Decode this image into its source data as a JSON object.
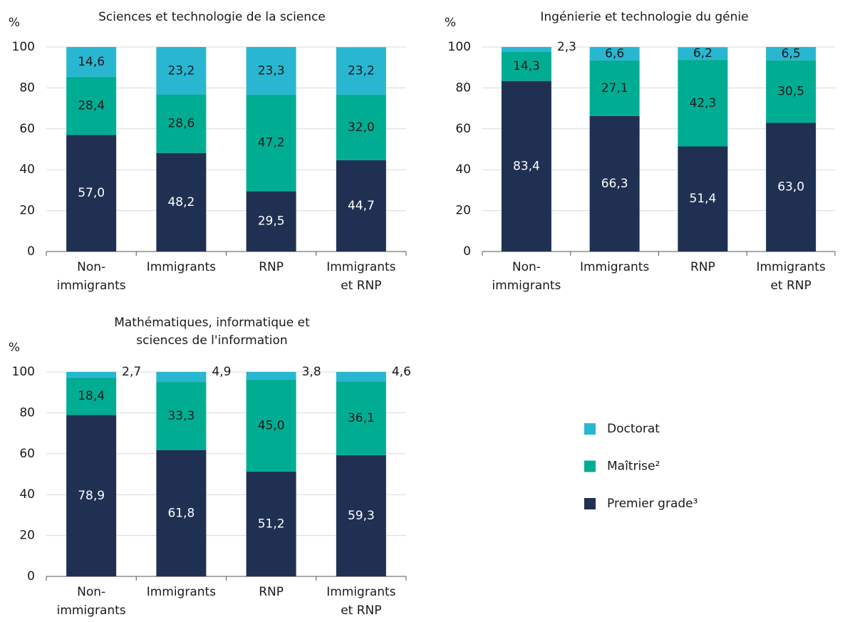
{
  "chart_data": [
    {
      "type": "bar",
      "stacked": true,
      "title": "Sciences et technologie de la science",
      "ylabel": "%",
      "categories": [
        "Non-immigrants",
        "Immigrants",
        "RNP",
        "Immigrants et RNP"
      ],
      "ylim": [
        0,
        100
      ],
      "yticks": [
        0,
        20,
        40,
        60,
        80,
        100
      ],
      "grid": true,
      "series": [
        {
          "name": "Premier grade³",
          "color": "#1f3052",
          "values": [
            57.0,
            48.2,
            29.5,
            44.7
          ],
          "value_labels": [
            "57,0",
            "48,2",
            "29,5",
            "44,7"
          ]
        },
        {
          "name": "Maîtrise²",
          "color": "#00ad93",
          "values": [
            28.4,
            28.6,
            47.2,
            32.0
          ],
          "value_labels": [
            "28,4",
            "28,6",
            "47,2",
            "32,0"
          ]
        },
        {
          "name": "Doctorat",
          "color": "#29b6d1",
          "values": [
            14.6,
            23.2,
            23.3,
            23.2
          ],
          "value_labels": [
            "14,6",
            "23,2",
            "23,3",
            "23,2"
          ]
        }
      ]
    },
    {
      "type": "bar",
      "stacked": true,
      "title": "Ingénierie et technologie du génie",
      "ylabel": "%",
      "categories": [
        "Non-immigrants",
        "Immigrants",
        "RNP",
        "Immigrants et RNP"
      ],
      "ylim": [
        0,
        100
      ],
      "yticks": [
        0,
        20,
        40,
        60,
        80,
        100
      ],
      "grid": true,
      "series": [
        {
          "name": "Premier grade³",
          "color": "#1f3052",
          "values": [
            83.4,
            66.3,
            51.4,
            63.0
          ],
          "value_labels": [
            "83,4",
            "66,3",
            "51,4",
            "63,0"
          ]
        },
        {
          "name": "Maîtrise²",
          "color": "#00ad93",
          "values": [
            14.3,
            27.1,
            42.3,
            30.5
          ],
          "value_labels": [
            "14,3",
            "27,1",
            "42,3",
            "30,5"
          ]
        },
        {
          "name": "Doctorat",
          "color": "#29b6d1",
          "values": [
            2.3,
            6.6,
            6.2,
            6.5
          ],
          "value_labels": [
            "2,3",
            "6,6",
            "6,2",
            "6,5"
          ]
        }
      ]
    },
    {
      "type": "bar",
      "stacked": true,
      "title": "Mathématiques, informatique et sciences de l'information",
      "ylabel": "%",
      "categories": [
        "Non-immigrants",
        "Immigrants",
        "RNP",
        "Immigrants et RNP"
      ],
      "ylim": [
        0,
        100
      ],
      "yticks": [
        0,
        20,
        40,
        60,
        80,
        100
      ],
      "grid": true,
      "series": [
        {
          "name": "Premier grade³",
          "color": "#1f3052",
          "values": [
            78.9,
            61.8,
            51.2,
            59.3
          ],
          "value_labels": [
            "78,9",
            "61,8",
            "51,2",
            "59,3"
          ]
        },
        {
          "name": "Maîtrise²",
          "color": "#00ad93",
          "values": [
            18.4,
            33.3,
            45.0,
            36.1
          ],
          "value_labels": [
            "18,4",
            "33,3",
            "45,0",
            "36,1"
          ]
        },
        {
          "name": "Doctorat",
          "color": "#29b6d1",
          "values": [
            2.7,
            4.9,
            3.8,
            4.6
          ],
          "value_labels": [
            "2,7",
            "4,9",
            "3,8",
            "4,6"
          ]
        }
      ]
    }
  ]
}
